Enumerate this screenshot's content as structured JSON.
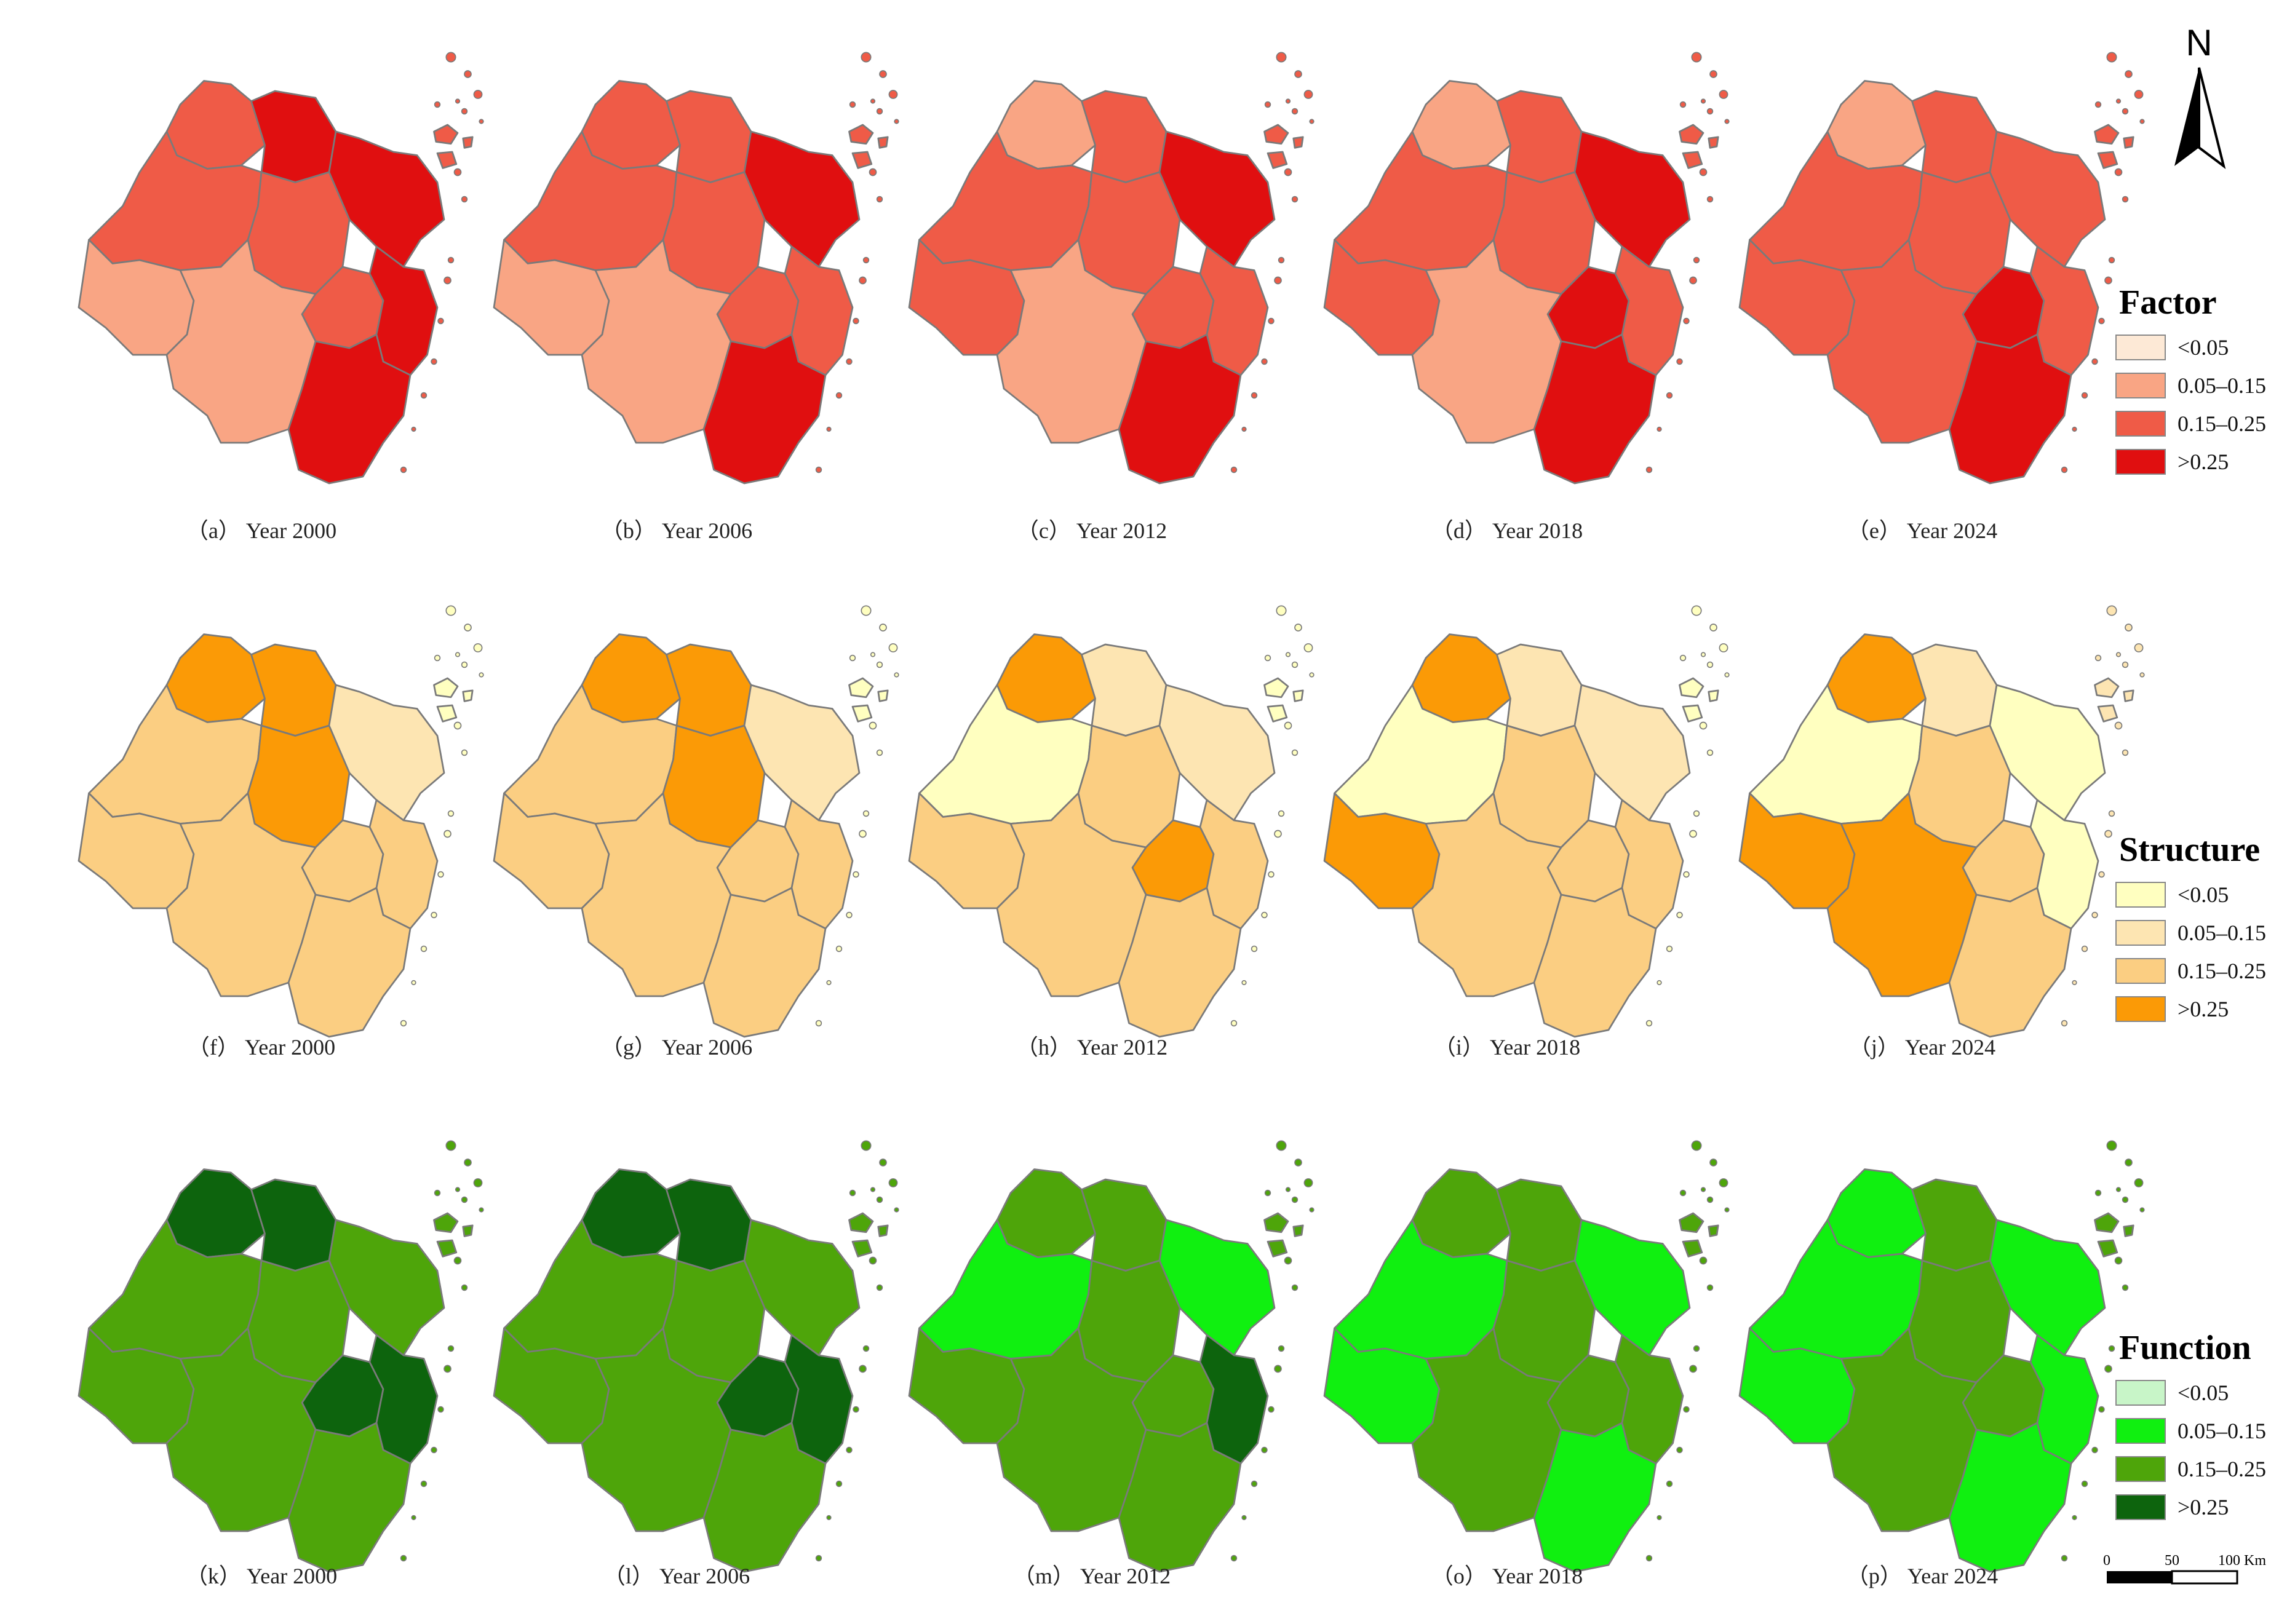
{
  "legend_ranges": [
    "<0.05",
    "0.05–0.15",
    "0.15–0.25",
    ">0.25"
  ],
  "rows": [
    {
      "name": "Factor",
      "colors": [
        "#fde9d6",
        "#f9a584",
        "#ef5b47",
        "#e00f10"
      ],
      "panels": [
        {
          "caption": "（a） Year 2000",
          "classes": [
            2,
            3,
            3,
            2,
            2,
            2,
            3,
            1,
            1,
            3,
            2
          ]
        },
        {
          "caption": "（b） Year 2006",
          "classes": [
            2,
            2,
            3,
            2,
            2,
            2,
            2,
            1,
            1,
            3,
            2
          ]
        },
        {
          "caption": "（c） Year 2012",
          "classes": [
            1,
            2,
            3,
            2,
            2,
            2,
            2,
            2,
            1,
            3,
            2
          ]
        },
        {
          "caption": "（d） Year 2018",
          "classes": [
            1,
            2,
            3,
            2,
            2,
            3,
            2,
            2,
            1,
            3,
            2
          ]
        },
        {
          "caption": "（e） Year 2024",
          "classes": [
            1,
            2,
            2,
            2,
            2,
            3,
            2,
            2,
            2,
            3,
            2
          ]
        }
      ]
    },
    {
      "name": "Structure",
      "colors": [
        "#ffffc0",
        "#fde5b2",
        "#fbce82",
        "#fb9a06"
      ],
      "panels": [
        {
          "caption": "（f） Year 2000",
          "classes": [
            3,
            3,
            1,
            2,
            3,
            2,
            2,
            2,
            2,
            2,
            0
          ]
        },
        {
          "caption": "（g） Year 2006",
          "classes": [
            3,
            3,
            1,
            2,
            3,
            2,
            2,
            2,
            2,
            2,
            0
          ]
        },
        {
          "caption": "（h） Year 2012",
          "classes": [
            3,
            1,
            1,
            0,
            2,
            3,
            2,
            2,
            2,
            2,
            0
          ]
        },
        {
          "caption": "（i） Year 2018",
          "classes": [
            3,
            1,
            1,
            0,
            2,
            2,
            2,
            3,
            2,
            2,
            0
          ]
        },
        {
          "caption": "（j） Year 2024",
          "classes": [
            3,
            1,
            0,
            0,
            2,
            2,
            0,
            3,
            3,
            2,
            1
          ]
        }
      ]
    },
    {
      "name": "Function",
      "colors": [
        "#c8f5c8",
        "#10f010",
        "#4ea50a",
        "#0d640d"
      ],
      "panels": [
        {
          "caption": "（k） Year 2000",
          "classes": [
            3,
            3,
            2,
            2,
            2,
            3,
            3,
            2,
            2,
            2,
            2
          ]
        },
        {
          "caption": "（l） Year 2006",
          "classes": [
            3,
            3,
            2,
            2,
            2,
            3,
            3,
            2,
            2,
            2,
            2
          ]
        },
        {
          "caption": "（m） Year 2012",
          "classes": [
            2,
            2,
            1,
            1,
            2,
            2,
            3,
            2,
            2,
            2,
            2
          ]
        },
        {
          "caption": "（o） Year 2018",
          "classes": [
            2,
            2,
            1,
            1,
            2,
            2,
            2,
            1,
            2,
            1,
            2
          ]
        },
        {
          "caption": "（p） Year 2024",
          "classes": [
            1,
            2,
            1,
            1,
            2,
            2,
            1,
            1,
            2,
            1,
            2
          ]
        }
      ]
    }
  ],
  "north_arrow": {
    "label": "N"
  },
  "scale_bar": {
    "ticks": [
      "0",
      "50",
      "100 Km"
    ]
  }
}
